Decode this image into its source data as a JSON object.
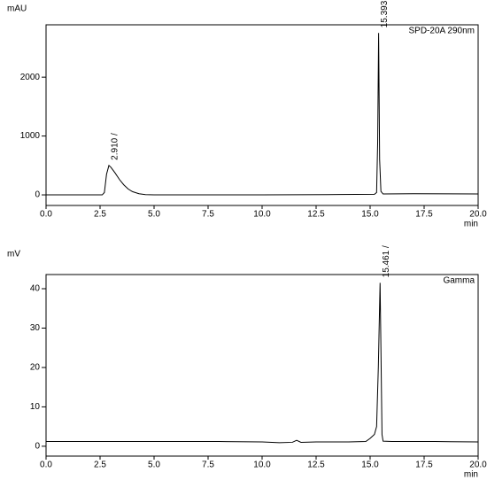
{
  "chart_data": [
    {
      "type": "line",
      "y_label": "mAU",
      "x_label": "min",
      "x": [
        0,
        1,
        2,
        2.6,
        2.7,
        2.8,
        2.91,
        3.0,
        3.2,
        3.4,
        3.6,
        3.8,
        4.0,
        4.3,
        4.6,
        5,
        7,
        10,
        13,
        15.2,
        15.3,
        15.35,
        15.393,
        15.44,
        15.5,
        15.6,
        17,
        20
      ],
      "series": [
        {
          "name": "SPD-20A 290nm",
          "color": "#000000",
          "values": [
            0,
            0,
            0,
            0,
            40,
            350,
            500,
            470,
            370,
            260,
            170,
            100,
            55,
            20,
            5,
            0,
            0,
            0,
            5,
            10,
            40,
            900,
            2750,
            600,
            60,
            15,
            20,
            15
          ]
        }
      ],
      "annotations": [
        {
          "label": "2.910 /",
          "x": 2.91
        },
        {
          "label": "15.393 /",
          "x": 15.393
        }
      ],
      "xlim": [
        0,
        20
      ],
      "ylim": [
        -180,
        2890
      ],
      "xticks": [
        {
          "value": 0,
          "label": "0.0"
        },
        {
          "value": 2.5,
          "label": "2.5"
        },
        {
          "value": 5,
          "label": "5.0"
        },
        {
          "value": 7.5,
          "label": "7.5"
        },
        {
          "value": 10,
          "label": "10.0"
        },
        {
          "value": 12.5,
          "label": "12.5"
        },
        {
          "value": 15,
          "label": "15.0"
        },
        {
          "value": 17.5,
          "label": "17.5"
        },
        {
          "value": 20,
          "label": "20.0"
        }
      ],
      "yticks": [
        0,
        1000,
        2000
      ]
    },
    {
      "type": "line",
      "y_label": "mV",
      "x_label": "min",
      "x": [
        0,
        2,
        4,
        6,
        8,
        10,
        10.8,
        11.4,
        11.6,
        11.8,
        12.5,
        14,
        14.8,
        15.0,
        15.1,
        15.2,
        15.3,
        15.38,
        15.461,
        15.5,
        15.55,
        15.6,
        16,
        18,
        20
      ],
      "series": [
        {
          "name": "Gamma",
          "color": "#000000",
          "values": [
            1.2,
            1.2,
            1.2,
            1.2,
            1.2,
            1.1,
            0.9,
            1.0,
            1.5,
            1.0,
            1.1,
            1.1,
            1.2,
            2.0,
            2.5,
            3.0,
            5,
            20,
            41.5,
            25,
            3,
            1.3,
            1.2,
            1.2,
            1.1
          ]
        }
      ],
      "annotations": [
        {
          "label": "15.461 /",
          "x": 15.461
        }
      ],
      "xlim": [
        0,
        20
      ],
      "ylim": [
        -2.5,
        43.6
      ],
      "xticks": [
        {
          "value": 0,
          "label": "0.0"
        },
        {
          "value": 2.5,
          "label": "2.5"
        },
        {
          "value": 5,
          "label": "5.0"
        },
        {
          "value": 7.5,
          "label": "7.5"
        },
        {
          "value": 10,
          "label": "10.0"
        },
        {
          "value": 12.5,
          "label": "12.5"
        },
        {
          "value": 15,
          "label": "15.0"
        },
        {
          "value": 17.5,
          "label": "17.5"
        },
        {
          "value": 20,
          "label": "20.0"
        }
      ],
      "yticks": [
        0,
        10,
        20,
        30,
        40
      ]
    }
  ]
}
